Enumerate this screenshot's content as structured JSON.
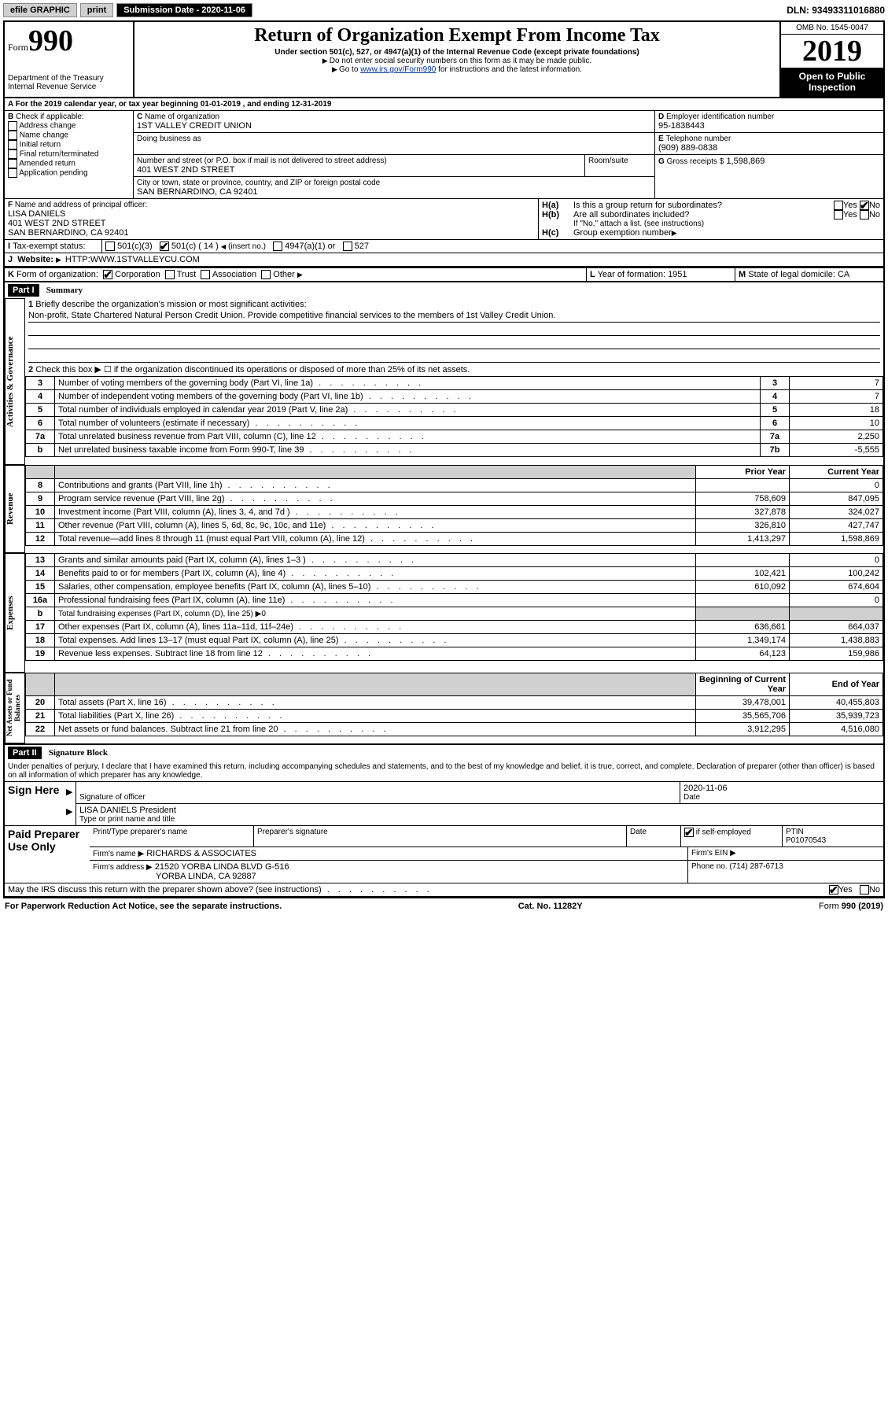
{
  "topbar": {
    "efile": "efile GRAPHIC",
    "print": "print",
    "subdate_label": "Submission Date - 2020-11-06",
    "dln": "DLN: 93493311016880"
  },
  "header": {
    "form_word": "Form",
    "form_num": "990",
    "dept": "Department of the Treasury\nInternal Revenue Service",
    "title": "Return of Organization Exempt From Income Tax",
    "subtitle": "Under section 501(c), 527, or 4947(a)(1) of the Internal Revenue Code (except private foundations)",
    "note1": "Do not enter social security numbers on this form as it may be made public.",
    "note2_pre": "Go to ",
    "note2_link": "www.irs.gov/Form990",
    "note2_post": " for instructions and the latest information.",
    "omb": "OMB No. 1545-0047",
    "year": "2019",
    "pub": "Open to Public\nInspection"
  },
  "line_a": "For the 2019 calendar year, or tax year beginning 01-01-2019   , and ending 12-31-2019",
  "box_b": {
    "label": "Check if applicable:",
    "items": [
      "Address change",
      "Name change",
      "Initial return",
      "Final return/terminated",
      "Amended return",
      "Application pending"
    ]
  },
  "box_c": {
    "label": "Name of organization",
    "value": "1ST VALLEY CREDIT UNION",
    "dba_label": "Doing business as",
    "addr_label": "Number and street (or P.O. box if mail is not delivered to street address)",
    "room_label": "Room/suite",
    "addr": "401 WEST 2ND STREET",
    "city_label": "City or town, state or province, country, and ZIP or foreign postal code",
    "city": "SAN BERNARDINO, CA  92401"
  },
  "box_d": {
    "label": "Employer identification number",
    "value": "95-1838443"
  },
  "box_e": {
    "label": "Telephone number",
    "value": "(909) 889-0838"
  },
  "box_g": {
    "label": "Gross receipts $",
    "value": "1,598,869"
  },
  "box_f": {
    "label": "Name and address of principal officer:",
    "name": "LISA DANIELS",
    "addr1": "401 WEST 2ND STREET",
    "addr2": "SAN BERNARDINO, CA  92401"
  },
  "box_h": {
    "a": "Is this a group return for subordinates?",
    "b": "Are all subordinates included?",
    "b_note": "If \"No,\" attach a list. (see instructions)",
    "c": "Group exemption number"
  },
  "box_i": {
    "label": "Tax-exempt status:",
    "opt1": "501(c)(3)",
    "opt2": "501(c) ( 14 )",
    "opt2_note": "(insert no.)",
    "opt3": "4947(a)(1) or",
    "opt4": "527"
  },
  "box_j": {
    "label": "Website:",
    "value": "HTTP:WWW.1STVALLEYCU.COM"
  },
  "box_k": {
    "label": "Form of organization:",
    "opts": [
      "Corporation",
      "Trust",
      "Association",
      "Other"
    ]
  },
  "box_l": {
    "label": "Year of formation:",
    "value": "1951"
  },
  "box_m": {
    "label": "State of legal domicile:",
    "value": "CA"
  },
  "part1": {
    "header": "Part I",
    "title": "Summary",
    "q1": "Briefly describe the organization's mission or most significant activities:",
    "mission": "Non-profit, State Chartered Natural Person Credit Union. Provide competitive financial services to the members of 1st Valley Credit Union.",
    "q2": "Check this box ▶ ☐ if the organization discontinued its operations or disposed of more than 25% of its net assets.",
    "sidebars": [
      "Activities & Governance",
      "Revenue",
      "Expenses",
      "Net Assets or Fund Balances"
    ],
    "col_prior": "Prior Year",
    "col_current": "Current Year",
    "col_begin": "Beginning of Current Year",
    "col_end": "End of Year",
    "rows_gov": [
      {
        "n": "3",
        "t": "Number of voting members of the governing body (Part VI, line 1a)",
        "box": "3",
        "v": "7"
      },
      {
        "n": "4",
        "t": "Number of independent voting members of the governing body (Part VI, line 1b)",
        "box": "4",
        "v": "7"
      },
      {
        "n": "5",
        "t": "Total number of individuals employed in calendar year 2019 (Part V, line 2a)",
        "box": "5",
        "v": "18"
      },
      {
        "n": "6",
        "t": "Total number of volunteers (estimate if necessary)",
        "box": "6",
        "v": "10"
      },
      {
        "n": "7a",
        "t": "Total unrelated business revenue from Part VIII, column (C), line 12",
        "box": "7a",
        "v": "2,250"
      },
      {
        "n": "b",
        "t": "Net unrelated business taxable income from Form 990-T, line 39",
        "box": "7b",
        "v": "-5,555"
      }
    ],
    "rows_rev": [
      {
        "n": "8",
        "t": "Contributions and grants (Part VIII, line 1h)",
        "p": "",
        "c": "0"
      },
      {
        "n": "9",
        "t": "Program service revenue (Part VIII, line 2g)",
        "p": "758,609",
        "c": "847,095"
      },
      {
        "n": "10",
        "t": "Investment income (Part VIII, column (A), lines 3, 4, and 7d )",
        "p": "327,878",
        "c": "324,027"
      },
      {
        "n": "11",
        "t": "Other revenue (Part VIII, column (A), lines 5, 6d, 8c, 9c, 10c, and 11e)",
        "p": "326,810",
        "c": "427,747"
      },
      {
        "n": "12",
        "t": "Total revenue—add lines 8 through 11 (must equal Part VIII, column (A), line 12)",
        "p": "1,413,297",
        "c": "1,598,869"
      }
    ],
    "rows_exp": [
      {
        "n": "13",
        "t": "Grants and similar amounts paid (Part IX, column (A), lines 1–3 )",
        "p": "",
        "c": "0"
      },
      {
        "n": "14",
        "t": "Benefits paid to or for members (Part IX, column (A), line 4)",
        "p": "102,421",
        "c": "100,242"
      },
      {
        "n": "15",
        "t": "Salaries, other compensation, employee benefits (Part IX, column (A), lines 5–10)",
        "p": "610,092",
        "c": "674,604"
      },
      {
        "n": "16a",
        "t": "Professional fundraising fees (Part IX, column (A), line 11e)",
        "p": "",
        "c": "0"
      },
      {
        "n": "b",
        "t": "Total fundraising expenses (Part IX, column (D), line 25) ▶0",
        "p": null,
        "c": null
      },
      {
        "n": "17",
        "t": "Other expenses (Part IX, column (A), lines 11a–11d, 11f–24e)",
        "p": "636,661",
        "c": "664,037"
      },
      {
        "n": "18",
        "t": "Total expenses. Add lines 13–17 (must equal Part IX, column (A), line 25)",
        "p": "1,349,174",
        "c": "1,438,883"
      },
      {
        "n": "19",
        "t": "Revenue less expenses. Subtract line 18 from line 12",
        "p": "64,123",
        "c": "159,986"
      }
    ],
    "rows_net": [
      {
        "n": "20",
        "t": "Total assets (Part X, line 16)",
        "p": "39,478,001",
        "c": "40,455,803"
      },
      {
        "n": "21",
        "t": "Total liabilities (Part X, line 26)",
        "p": "35,565,706",
        "c": "35,939,723"
      },
      {
        "n": "22",
        "t": "Net assets or fund balances. Subtract line 21 from line 20",
        "p": "3,912,295",
        "c": "4,516,080"
      }
    ]
  },
  "part2": {
    "header": "Part II",
    "title": "Signature Block",
    "decl": "Under penalties of perjury, I declare that I have examined this return, including accompanying schedules and statements, and to the best of my knowledge and belief, it is true, correct, and complete. Declaration of preparer (other than officer) is based on all information of which preparer has any knowledge.",
    "sign_here": "Sign Here",
    "sig_officer": "Signature of officer",
    "date": "2020-11-06",
    "date_label": "Date",
    "name_title": "LISA DANIELS President",
    "name_title_label": "Type or print name and title",
    "paid": "Paid Preparer Use Only",
    "prep_name_label": "Print/Type preparer's name",
    "prep_sig_label": "Preparer's signature",
    "check_self": "Check ☐ if self-employed",
    "ptin_label": "PTIN",
    "ptin": "P01070543",
    "firm_name_label": "Firm's name   ▶",
    "firm_name": "RICHARDS & ASSOCIATES",
    "firm_ein_label": "Firm's EIN ▶",
    "firm_addr_label": "Firm's address ▶",
    "firm_addr": "21520 YORBA LINDA BLVD G-516",
    "firm_city": "YORBA LINDA, CA  92887",
    "phone_label": "Phone no.",
    "phone": "(714) 287-6713",
    "discuss": "May the IRS discuss this return with the preparer shown above? (see instructions)"
  },
  "footer": {
    "left": "For Paperwork Reduction Act Notice, see the separate instructions.",
    "mid": "Cat. No. 11282Y",
    "right": "Form 990 (2019)"
  },
  "labels": {
    "yes": "Yes",
    "no": "No"
  }
}
